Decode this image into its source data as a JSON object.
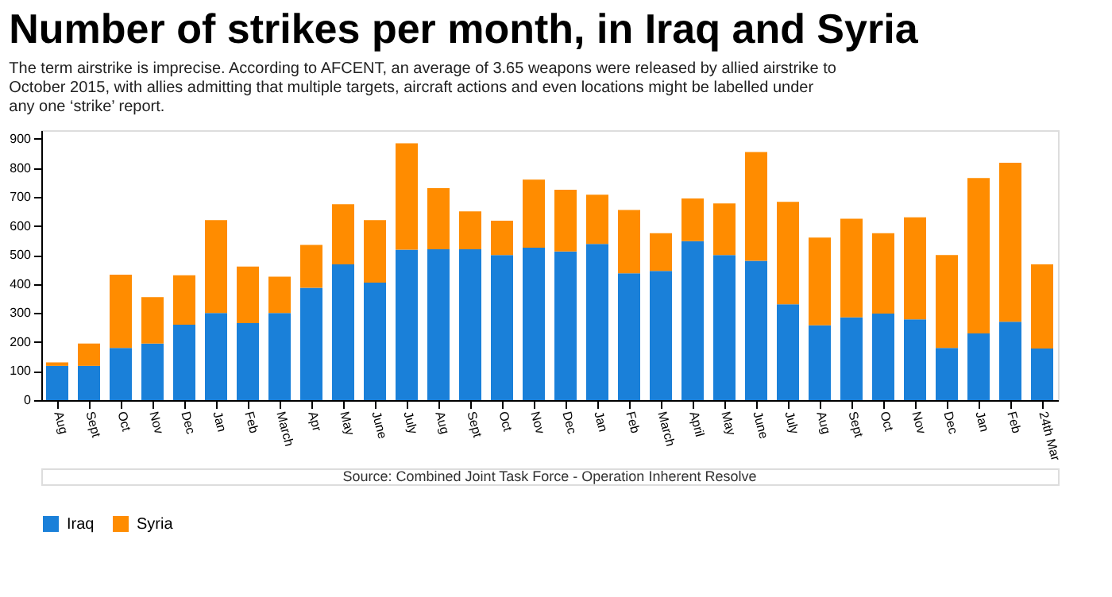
{
  "chart_data": {
    "type": "bar",
    "title": "Number of strikes per month, in Iraq and Syria",
    "subtitle": "The term airstrike is imprecise. According to AFCENT, an average of 3.65 weapons were released by allied airstrike to October 2015, with allies admitting that multiple targets, aircraft actions and even locations might be labelled under any one ‘strike’ report.",
    "categories": [
      "Aug",
      "Sept",
      "Oct",
      "Nov",
      "Dec",
      "Jan",
      "Feb",
      "March",
      "Apr",
      "May",
      "June",
      "July",
      "Aug",
      "Sept",
      "Oct",
      "Nov",
      "Dec",
      "Jan",
      "Feb",
      "March",
      "April",
      "May",
      "June",
      "July",
      "Aug",
      "Sept",
      "Oct",
      "Nov",
      "Dec",
      "Jan",
      "Feb",
      "24th Mar"
    ],
    "stacked": true,
    "series": [
      {
        "name": "Iraq",
        "color": "#1a80d9",
        "values": [
          118,
          118,
          180,
          195,
          260,
          300,
          265,
          300,
          387,
          468,
          405,
          518,
          520,
          520,
          500,
          525,
          512,
          538,
          437,
          445,
          548,
          500,
          480,
          330,
          258,
          285,
          298,
          278,
          180,
          230,
          270,
          178
        ]
      },
      {
        "name": "Syria",
        "color": "#ff8c00",
        "values": [
          12,
          77,
          252,
          160,
          170,
          320,
          195,
          125,
          148,
          207,
          215,
          367,
          210,
          130,
          118,
          235,
          213,
          170,
          218,
          130,
          147,
          178,
          375,
          353,
          302,
          340,
          277,
          352,
          320,
          535,
          548,
          290
        ]
      }
    ],
    "ylim": [
      0,
      930
    ],
    "yticks": [
      0,
      100,
      200,
      300,
      400,
      500,
      600,
      700,
      800,
      900
    ],
    "grid": false,
    "legend": "bottom",
    "annotations": [
      "Source: Combined Joint Task Force - Operation Inherent Resolve"
    ]
  }
}
